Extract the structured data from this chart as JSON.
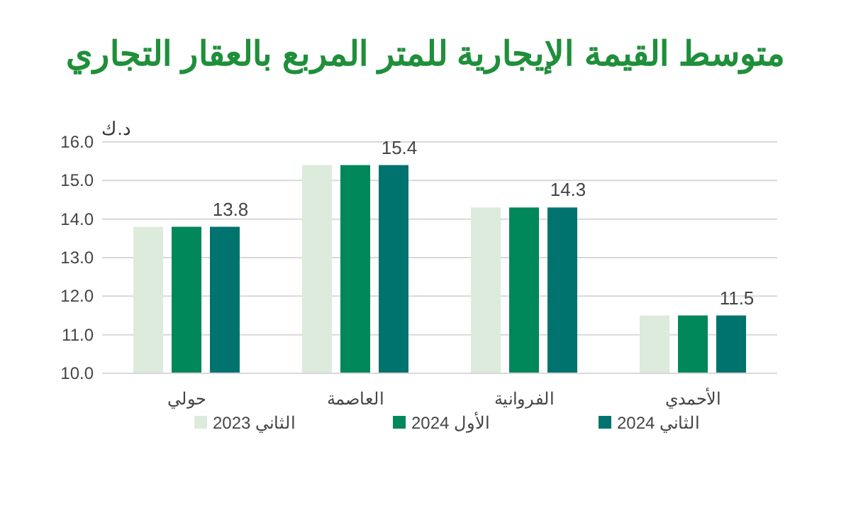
{
  "chart_data": {
    "type": "bar",
    "title": "متوسط القيمة الإيجارية للمتر المربع بالعقار التجاري",
    "ylabel": "د.ك",
    "categories": [
      "حولي",
      "العاصمة",
      "الفروانية",
      "الأحمدي"
    ],
    "series": [
      {
        "name": "الثاني 2023",
        "color": "#dcebdc",
        "values": [
          13.8,
          15.4,
          14.3,
          11.5
        ]
      },
      {
        "name": "الأول 2024",
        "color": "#00875a",
        "values": [
          13.8,
          15.4,
          14.3,
          11.5
        ]
      },
      {
        "name": "الثاني 2024",
        "color": "#00736f",
        "values": [
          13.8,
          15.4,
          14.3,
          11.5
        ],
        "value_labels": [
          "13.8",
          "15.4",
          "14.3",
          "11.5"
        ]
      }
    ],
    "ylim": [
      10,
      16
    ],
    "yticks": [
      {
        "value": 10,
        "label": "10.0"
      },
      {
        "value": 11,
        "label": "11.0"
      },
      {
        "value": 12,
        "label": "12.0"
      },
      {
        "value": 13,
        "label": "13.0"
      },
      {
        "value": 14,
        "label": "14.0"
      },
      {
        "value": 15,
        "label": "15.0"
      },
      {
        "value": 16,
        "label": "16.0"
      }
    ],
    "grid": "y",
    "legend": "bottom"
  }
}
